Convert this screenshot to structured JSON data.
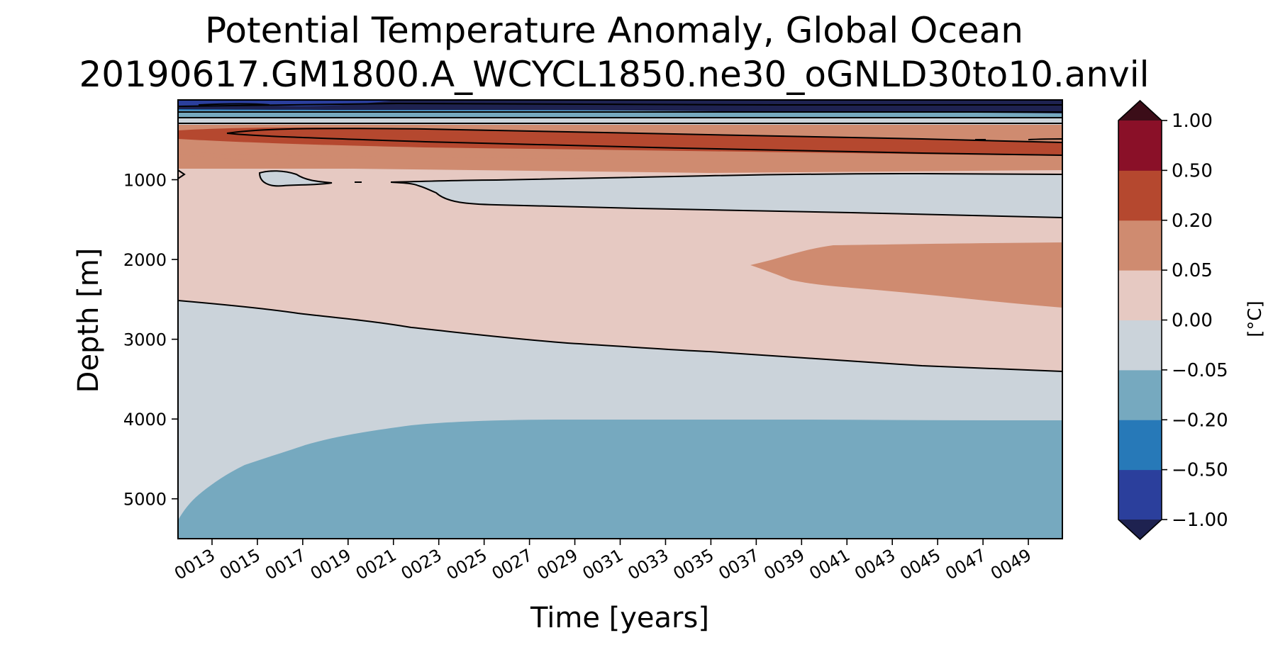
{
  "chart_data": {
    "type": "contourf",
    "title": "Potential Temperature Anomaly, Global Ocean",
    "subtitle": "20190617.GM1800.A_WCYCL1850.ne30_oGNLD30to10.anvil",
    "xlabel": "Time [years]",
    "ylabel": "Depth [m]",
    "x_ticks": [
      "0013",
      "0015",
      "0017",
      "0019",
      "0021",
      "0023",
      "0025",
      "0027",
      "0029",
      "0031",
      "0033",
      "0035",
      "0037",
      "0039",
      "0041",
      "0043",
      "0045",
      "0047",
      "0049"
    ],
    "y_ticks": [
      "1000",
      "2000",
      "3000",
      "4000",
      "5000"
    ],
    "y_tick_values": [
      1000,
      2000,
      3000,
      4000,
      5000
    ],
    "ylim": [
      5500,
      0
    ],
    "xlim_years": [
      11.5,
      50.5
    ],
    "y_inverted": true,
    "colorbar": {
      "label": "[°C]",
      "levels": [
        "−1.00",
        "−0.50",
        "−0.20",
        "−0.05",
        "0.00",
        "0.05",
        "0.20",
        "0.50",
        "1.00"
      ],
      "level_values": [
        -1.0,
        -0.5,
        -0.2,
        -0.05,
        0.0,
        0.05,
        0.2,
        0.5,
        1.0
      ],
      "colors": [
        "#2b3f9c",
        "#2779b8",
        "#76a9bf",
        "#cbd3da",
        "#e6c9c2",
        "#cf8b70",
        "#b5482f",
        "#8a1028"
      ],
      "under_color": "#1e2250",
      "over_color": "#3b0d18",
      "extend": "both"
    },
    "regions": [
      {
        "band": "surface (0–~300 m)",
        "anomaly": "below −1.00 to −0.05 (cooling, layered)"
      },
      {
        "band": "~300–~700 m",
        "anomaly": "0.20 to 0.50 (warming core), 0.05–0.20 flanks"
      },
      {
        "band": "~700–~2500 m",
        "anomaly": "0.00 to 0.05, with −0.05–0.00 lens near 1000–1500 m"
      },
      {
        "band": "~1800–2600 m, years 37–50",
        "anomaly": "0.05 to 0.20"
      },
      {
        "band": "~2500–4000 m",
        "anomaly": "−0.05 to 0.00"
      },
      {
        "band": "~4000–5500 m",
        "anomaly": "−0.20 to −0.05"
      }
    ]
  }
}
